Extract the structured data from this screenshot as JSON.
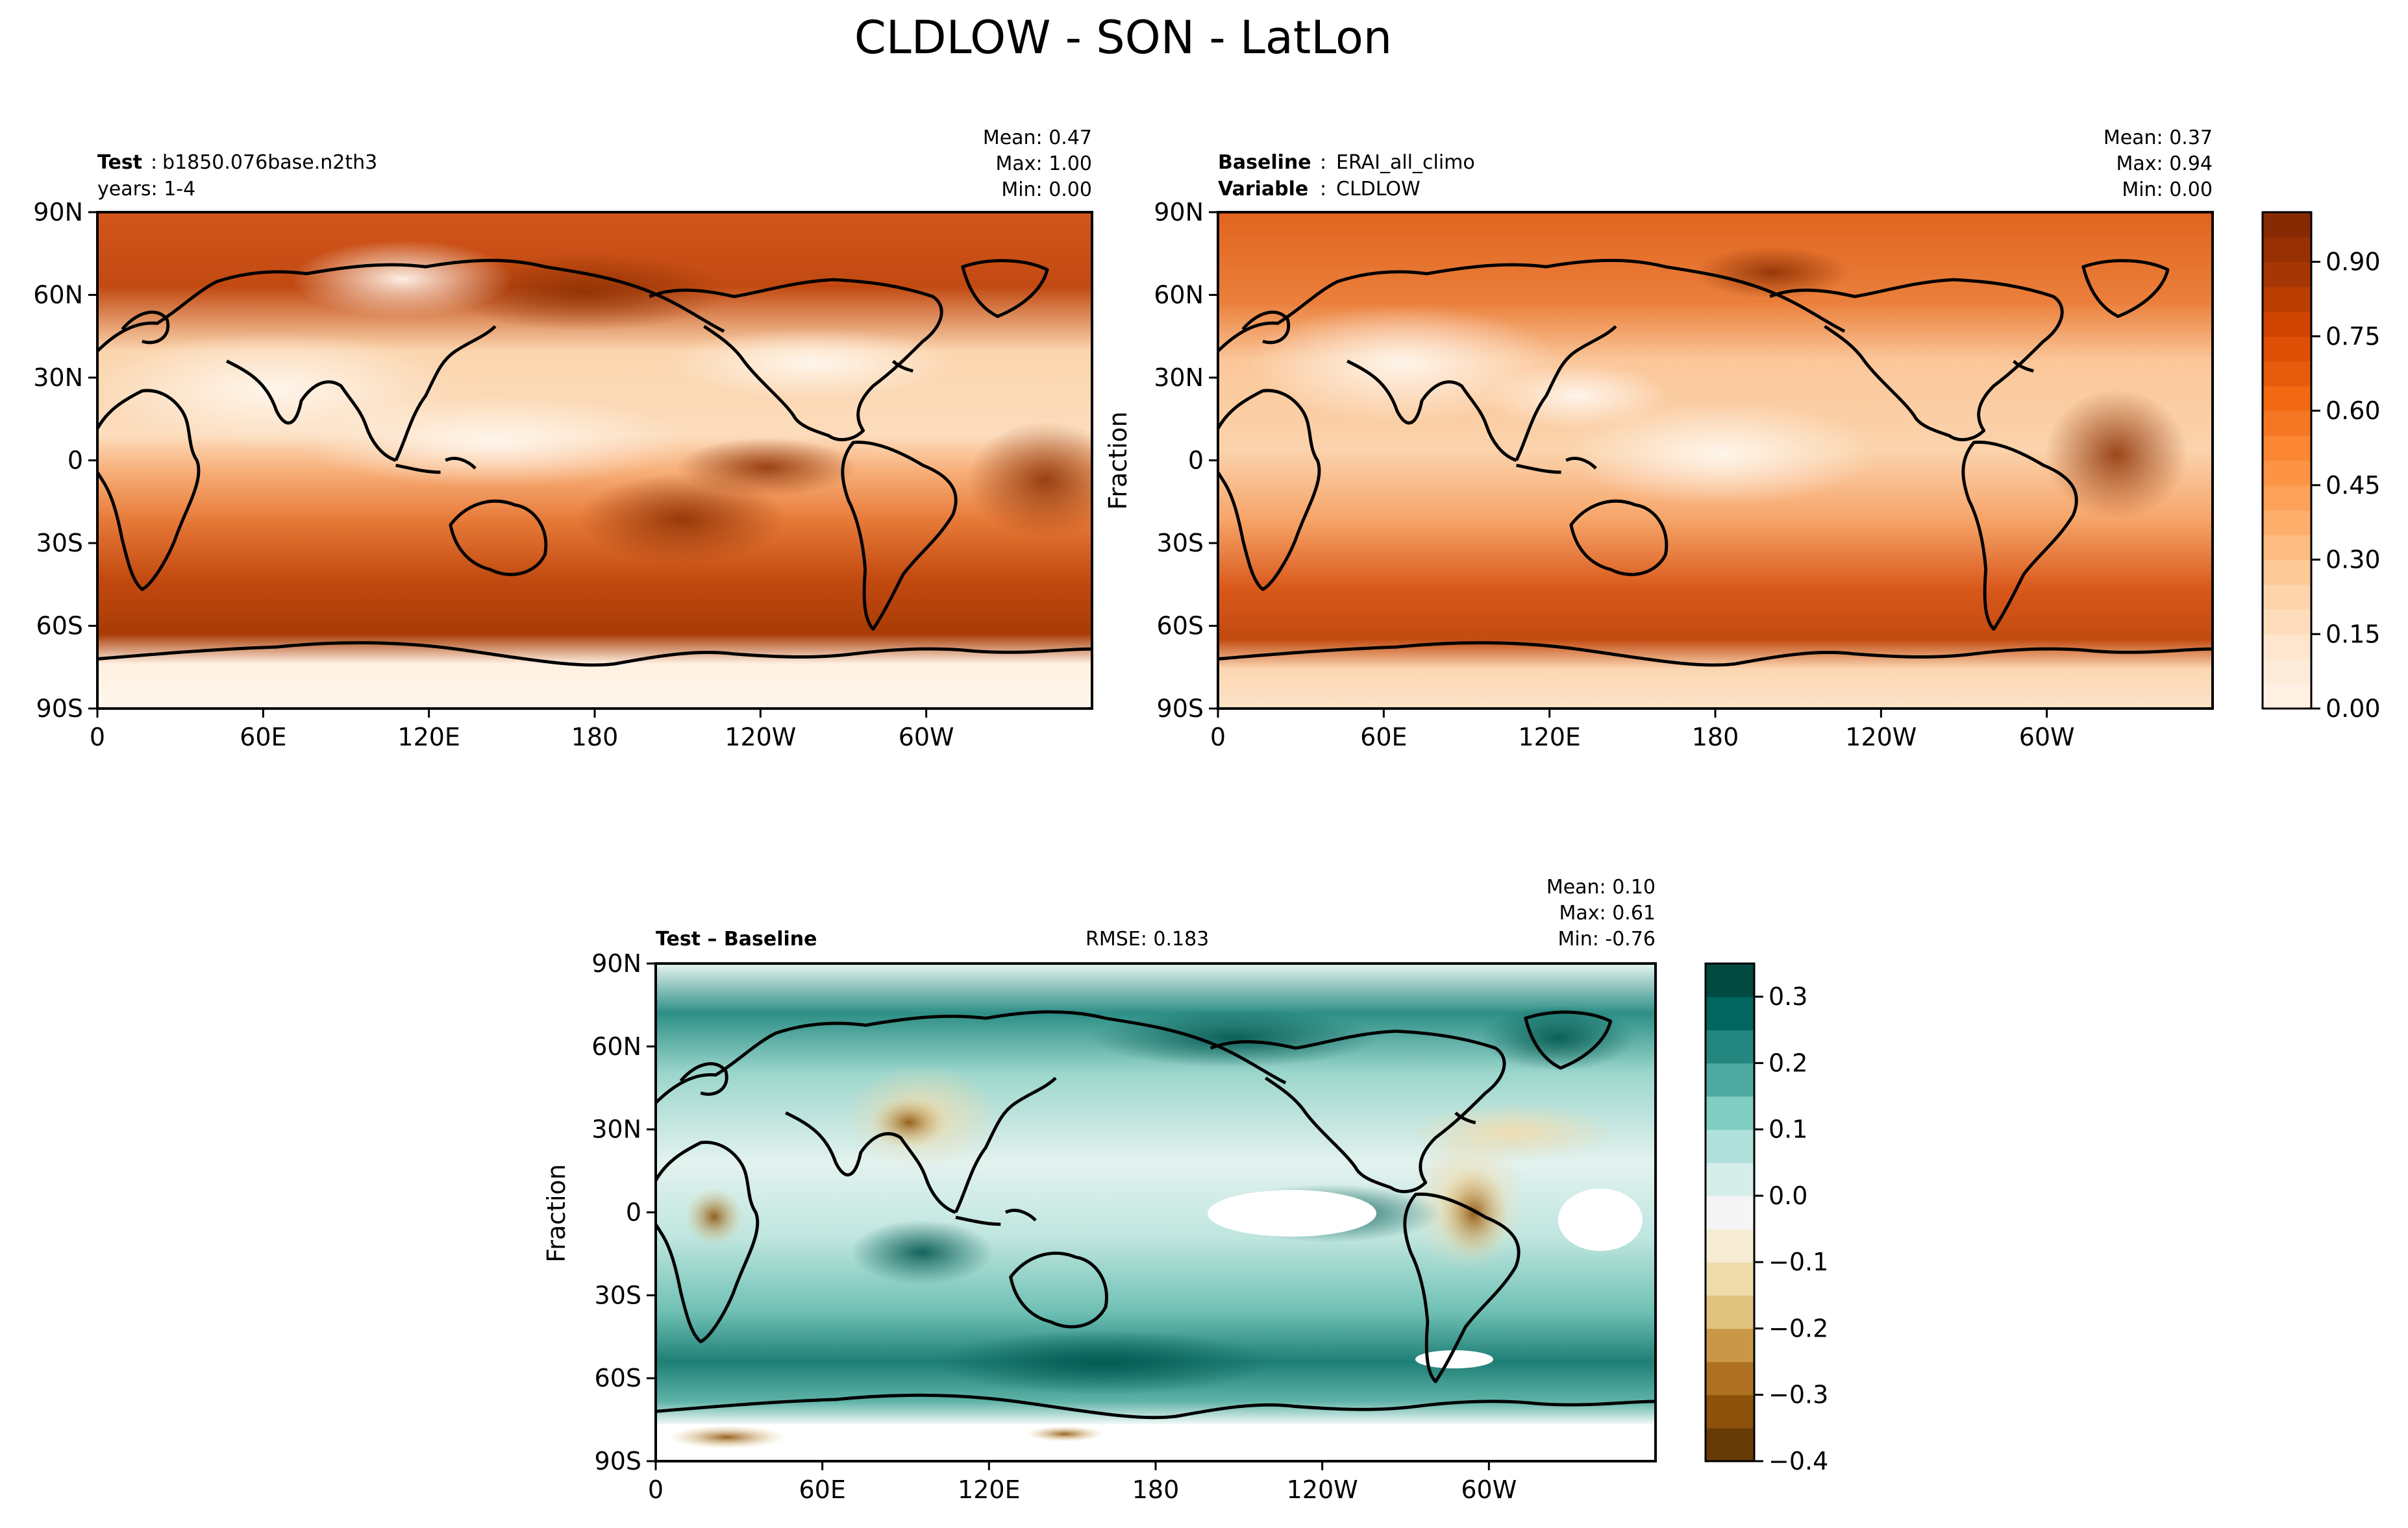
{
  "figure": {
    "title": "CLDLOW - SON - LatLon"
  },
  "chart_data": [
    {
      "type": "heatmap",
      "panel": "test",
      "header": {
        "bold_label": "Test",
        "value": "b1850.076base.n2th3",
        "line2": "years: 1-4"
      },
      "stats": {
        "mean": "Mean:  0.47",
        "max": "Max:  1.00",
        "min": "Min:  0.00"
      },
      "xlabel": "",
      "ylabel": "",
      "xticks": [
        "0",
        "60E",
        "120E",
        "180",
        "120W",
        "60W"
      ],
      "yticks": [
        "90N",
        "60N",
        "30N",
        "0",
        "30S",
        "60S",
        "90S"
      ],
      "xlim": [
        0,
        360
      ],
      "ylim": [
        -90,
        90
      ],
      "colormap": "Oranges",
      "value_range": [
        0,
        1
      ]
    },
    {
      "type": "heatmap",
      "panel": "baseline",
      "header": {
        "bold_label": "Baseline",
        "value": "ERAI_all_climo",
        "bold_label2": "Variable",
        "value2": "CLDLOW"
      },
      "stats": {
        "mean": "Mean:  0.37",
        "max": "Max:  0.94",
        "min": "Min:  0.00"
      },
      "xlabel": "",
      "ylabel": "Fraction",
      "xticks": [
        "0",
        "60E",
        "120E",
        "180",
        "120W",
        "60W"
      ],
      "yticks": [
        "90N",
        "60N",
        "30N",
        "0",
        "30S",
        "60S",
        "90S"
      ],
      "xlim": [
        0,
        360
      ],
      "ylim": [
        -90,
        90
      ],
      "colormap": "Oranges",
      "value_range": [
        0,
        1
      ],
      "colorbar": {
        "ticks": [
          "0.00",
          "0.15",
          "0.30",
          "0.45",
          "0.60",
          "0.75",
          "0.90"
        ],
        "tick_values": [
          0,
          0.15,
          0.3,
          0.45,
          0.6,
          0.75,
          0.9
        ],
        "range": [
          0,
          1
        ],
        "levels": 20,
        "colors": [
          "#fff5eb",
          "#fee6ce",
          "#fdd0a2",
          "#fdae6b",
          "#fd8d3c",
          "#f16913",
          "#d94801",
          "#a63603",
          "#7f2704"
        ]
      }
    },
    {
      "type": "heatmap",
      "panel": "difference",
      "header": {
        "bold_label": "Test – Baseline",
        "rmse": "RMSE: 0.183"
      },
      "stats": {
        "mean": "Mean:  0.10",
        "max": "Max:  0.61",
        "min": "Min: -0.76"
      },
      "xlabel": "",
      "ylabel": "Fraction",
      "xticks": [
        "0",
        "60E",
        "120E",
        "180",
        "120W",
        "60W"
      ],
      "yticks": [
        "90N",
        "60N",
        "30N",
        "0",
        "30S",
        "60S",
        "90S"
      ],
      "xlim": [
        0,
        360
      ],
      "ylim": [
        -90,
        90
      ],
      "colormap": "BrBG",
      "colorbar": {
        "ticks": [
          "0.3",
          "0.2",
          "0.1",
          "0.0",
          "−0.1",
          "−0.2",
          "−0.3",
          "−0.4"
        ],
        "tick_values": [
          0.3,
          0.2,
          0.1,
          0.0,
          -0.1,
          -0.2,
          -0.3,
          -0.4
        ],
        "range": [
          -0.4,
          0.35
        ],
        "levels": 15,
        "colors": [
          "#543005",
          "#8c510a",
          "#bf812d",
          "#dfc27d",
          "#f6e8c3",
          "#f5f5f5",
          "#c7eae5",
          "#80cdc1",
          "#35978f",
          "#01665e",
          "#003c30"
        ]
      }
    }
  ]
}
